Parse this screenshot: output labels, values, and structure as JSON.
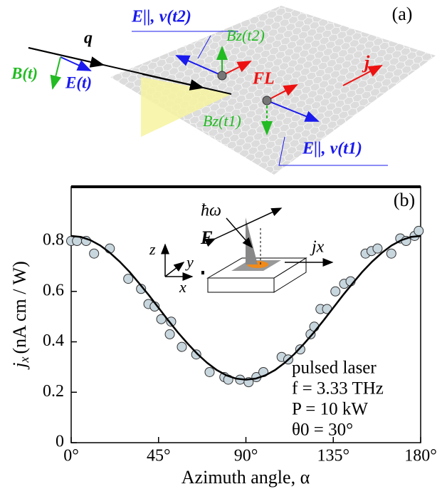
{
  "panel_a": {
    "label": "(a)",
    "q": "q",
    "B": "B(t)",
    "E": "E(t)",
    "E_par_t2": "E||, v(t2)",
    "Bz_t2": "Bz(t2)",
    "FL": "FL",
    "j": "j",
    "Bz_t1": "Bz(t1)",
    "E_par_t1": "E||, v(t1)"
  },
  "chart_data": {
    "type": "scatter",
    "panel_label": "(b)",
    "xlabel": "Azimuth angle, α",
    "ylabel": {
      "symbol": "j",
      "subscript": "x",
      "unit": "(nA cm / W)"
    },
    "xlim": [
      0,
      180
    ],
    "ylim": [
      0,
      1.015
    ],
    "xticks": [
      {
        "value": 0,
        "label": "0°"
      },
      {
        "value": 45,
        "label": "45°"
      },
      {
        "value": 90,
        "label": "90°"
      },
      {
        "value": 135,
        "label": "135°"
      },
      {
        "value": 180,
        "label": "180°"
      }
    ],
    "yticks": [
      0,
      0.2,
      0.4,
      0.6,
      0.8
    ],
    "inset": {
      "hw": "ħω",
      "E": "E",
      "jx": "jx",
      "z": "z",
      "y": "y",
      "x": "x"
    },
    "annotations": [
      "pulsed laser",
      "f = 3.33 THz",
      "P = 10 kW",
      "θ0 = 30°"
    ],
    "series": [
      {
        "type": "scatter",
        "color": "#c8d6de",
        "x": [
          0,
          3,
          7.7,
          11.8,
          19.9,
          29.4,
          36,
          39.8,
          43,
          46.4,
          50.8,
          51.5,
          57,
          64.4,
          71.3,
          78.9,
          80.9,
          87,
          91.4,
          95.4,
          99,
          108.4,
          111.8,
          118,
          123.3,
          125.2,
          128.4,
          131.8,
          136.1,
          140.6,
          143.9,
          151.6,
          154.7,
          157.8,
          164.9,
          169.5,
          172.5,
          176.9,
          179
        ],
        "values": [
          0.8,
          0.8,
          0.8,
          0.75,
          0.77,
          0.65,
          0.61,
          0.55,
          0.54,
          0.49,
          0.43,
          0.48,
          0.38,
          0.35,
          0.28,
          0.26,
          0.25,
          0.25,
          0.24,
          0.26,
          0.28,
          0.34,
          0.33,
          0.37,
          0.43,
          0.46,
          0.53,
          0.53,
          0.6,
          0.63,
          0.64,
          0.75,
          0.76,
          0.77,
          0.75,
          0.81,
          0.8,
          0.82,
          0.84
        ]
      },
      {
        "type": "line",
        "color": "#000000",
        "x": [
          0,
          5,
          10,
          15,
          20,
          25,
          30,
          35,
          40,
          45,
          50,
          55,
          60,
          65,
          70,
          75,
          80,
          85,
          90,
          95,
          100,
          105,
          110,
          115,
          120,
          125,
          130,
          135,
          140,
          145,
          150,
          155,
          160,
          165,
          170,
          175,
          180
        ],
        "values": [
          0.82,
          0.816,
          0.803,
          0.782,
          0.753,
          0.718,
          0.678,
          0.632,
          0.585,
          0.535,
          0.485,
          0.437,
          0.393,
          0.352,
          0.317,
          0.288,
          0.267,
          0.254,
          0.25,
          0.254,
          0.267,
          0.288,
          0.317,
          0.352,
          0.393,
          0.437,
          0.485,
          0.535,
          0.585,
          0.632,
          0.678,
          0.718,
          0.753,
          0.782,
          0.803,
          0.816,
          0.82
        ]
      }
    ]
  }
}
